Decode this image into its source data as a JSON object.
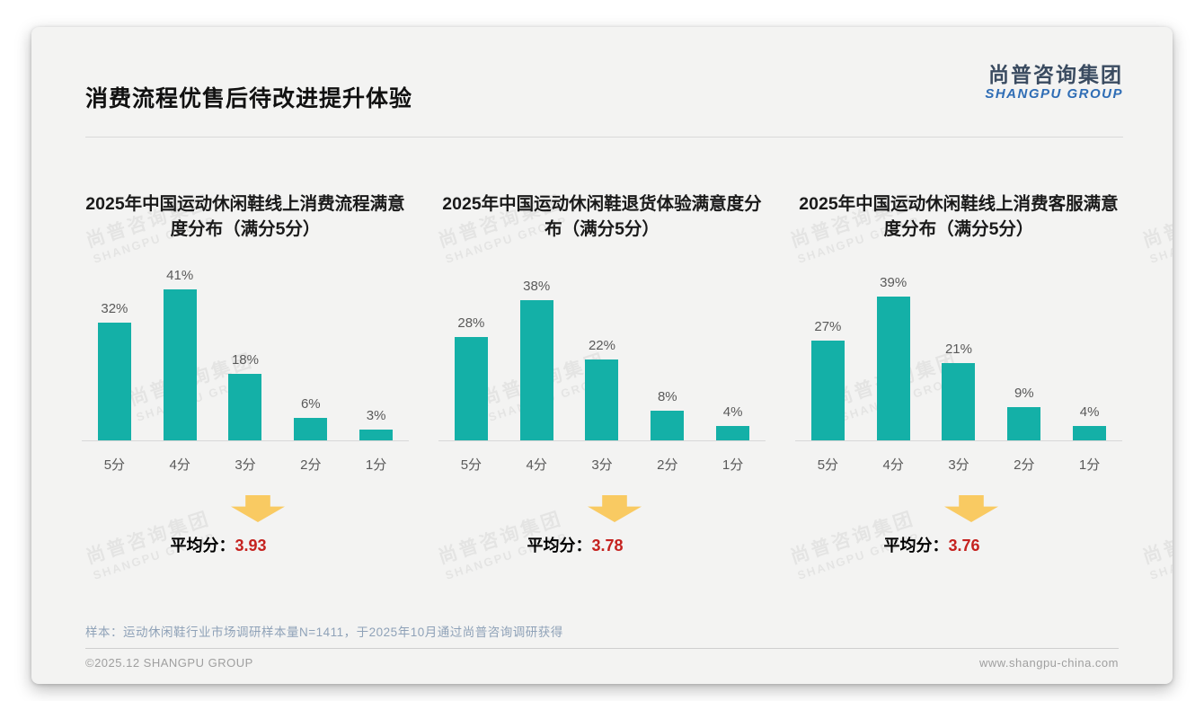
{
  "slide": {
    "title": "消费流程优售后待改进提升体验",
    "logo": {
      "cn": "尚普咨询集团",
      "en": "SHANGPU GROUP"
    },
    "watermark": {
      "cn": "尚普咨询集团",
      "en": "SHANGPU GROUP"
    },
    "sample_note": "样本：运动休闲鞋行业市场调研样本量N=1411，于2025年10月通过尚普咨询调研获得",
    "footer": {
      "copyright": "©2025.12 SHANGPU GROUP",
      "website": "www.shangpu-china.com"
    }
  },
  "colors": {
    "bar": "#14b0a7",
    "arrow": "#f9ca62",
    "avg_value": "#c5221f",
    "logo_cn": "#3a4b60",
    "logo_en": "#2f6db5"
  },
  "chart_data": [
    {
      "type": "bar",
      "title": "2025年中国运动休闲鞋线上消费流程满意度分布（满分5分）",
      "categories": [
        "5分",
        "4分",
        "3分",
        "2分",
        "1分"
      ],
      "values": [
        32,
        41,
        18,
        6,
        3
      ],
      "unit": "%",
      "value_labels": [
        "32%",
        "41%",
        "18%",
        "6%",
        "3%"
      ],
      "average_label": "平均分：",
      "average": "3.93",
      "ylim": [
        0,
        45
      ],
      "grid": false,
      "legend": "none"
    },
    {
      "type": "bar",
      "title": "2025年中国运动休闲鞋退货体验满意度分布（满分5分）",
      "categories": [
        "5分",
        "4分",
        "3分",
        "2分",
        "1分"
      ],
      "values": [
        28,
        38,
        22,
        8,
        4
      ],
      "unit": "%",
      "value_labels": [
        "28%",
        "38%",
        "22%",
        "8%",
        "4%"
      ],
      "average_label": "平均分：",
      "average": "3.78",
      "ylim": [
        0,
        45
      ],
      "grid": false,
      "legend": "none"
    },
    {
      "type": "bar",
      "title": "2025年中国运动休闲鞋线上消费客服满意度分布（满分5分）",
      "categories": [
        "5分",
        "4分",
        "3分",
        "2分",
        "1分"
      ],
      "values": [
        27,
        39,
        21,
        9,
        4
      ],
      "unit": "%",
      "value_labels": [
        "27%",
        "39%",
        "21%",
        "9%",
        "4%"
      ],
      "average_label": "平均分：",
      "average": "3.76",
      "ylim": [
        0,
        45
      ],
      "grid": false,
      "legend": "none"
    }
  ]
}
